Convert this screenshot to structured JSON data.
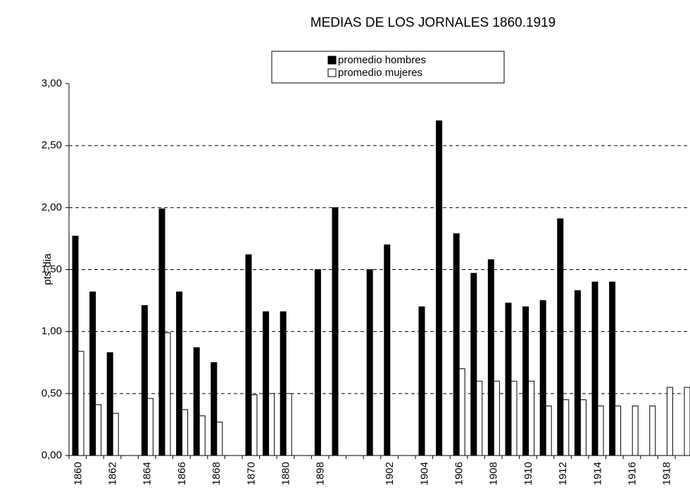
{
  "chart_data": {
    "type": "bar",
    "title": "MEDIAS DE LOS JORNALES 1860.1919",
    "y_label": "pts-dia",
    "categories": [
      "1860",
      null,
      "1862",
      null,
      "1864",
      null,
      "1866",
      null,
      "1868",
      null,
      "1870",
      null,
      "1880",
      null,
      "1898",
      null,
      null,
      null,
      "1902",
      null,
      "1904",
      null,
      "1906",
      null,
      "1908",
      null,
      "1910",
      null,
      "1912",
      null,
      "1914",
      null,
      "1916",
      null,
      "1918",
      null
    ],
    "series": [
      {
        "name": "promedio hombres",
        "color": "#000000",
        "values": [
          1.77,
          1.32,
          0.83,
          null,
          1.21,
          1.99,
          1.32,
          0.87,
          0.75,
          null,
          1.62,
          1.16,
          1.16,
          null,
          1.5,
          2.0,
          null,
          1.5,
          1.7,
          null,
          1.2,
          2.7,
          1.79,
          1.47,
          1.58,
          1.23,
          1.2,
          1.25,
          1.91,
          1.33,
          1.4,
          1.4,
          null,
          null,
          null,
          null
        ]
      },
      {
        "name": "promedio mujeres",
        "color": "#ffffff",
        "values": [
          0.84,
          0.41,
          0.34,
          null,
          0.46,
          0.99,
          0.37,
          0.32,
          0.27,
          null,
          0.49,
          0.5,
          0.5,
          null,
          null,
          null,
          null,
          null,
          null,
          null,
          null,
          null,
          0.7,
          0.6,
          0.6,
          0.6,
          0.6,
          0.4,
          0.45,
          0.45,
          0.4,
          0.4,
          0.4,
          0.4,
          0.55,
          0.55
        ]
      }
    ],
    "ylim": [
      0,
      3
    ],
    "yticks": [
      {
        "value": 0,
        "label": "0,00"
      },
      {
        "value": 0.5,
        "label": "0,50"
      },
      {
        "value": 1,
        "label": "1,00"
      },
      {
        "value": 1.5,
        "label": "1,50"
      },
      {
        "value": 2,
        "label": "2,00"
      },
      {
        "value": 2.5,
        "label": "2,50"
      },
      {
        "value": 3,
        "label": "3,00"
      }
    ],
    "grid": true,
    "legend": "top"
  }
}
